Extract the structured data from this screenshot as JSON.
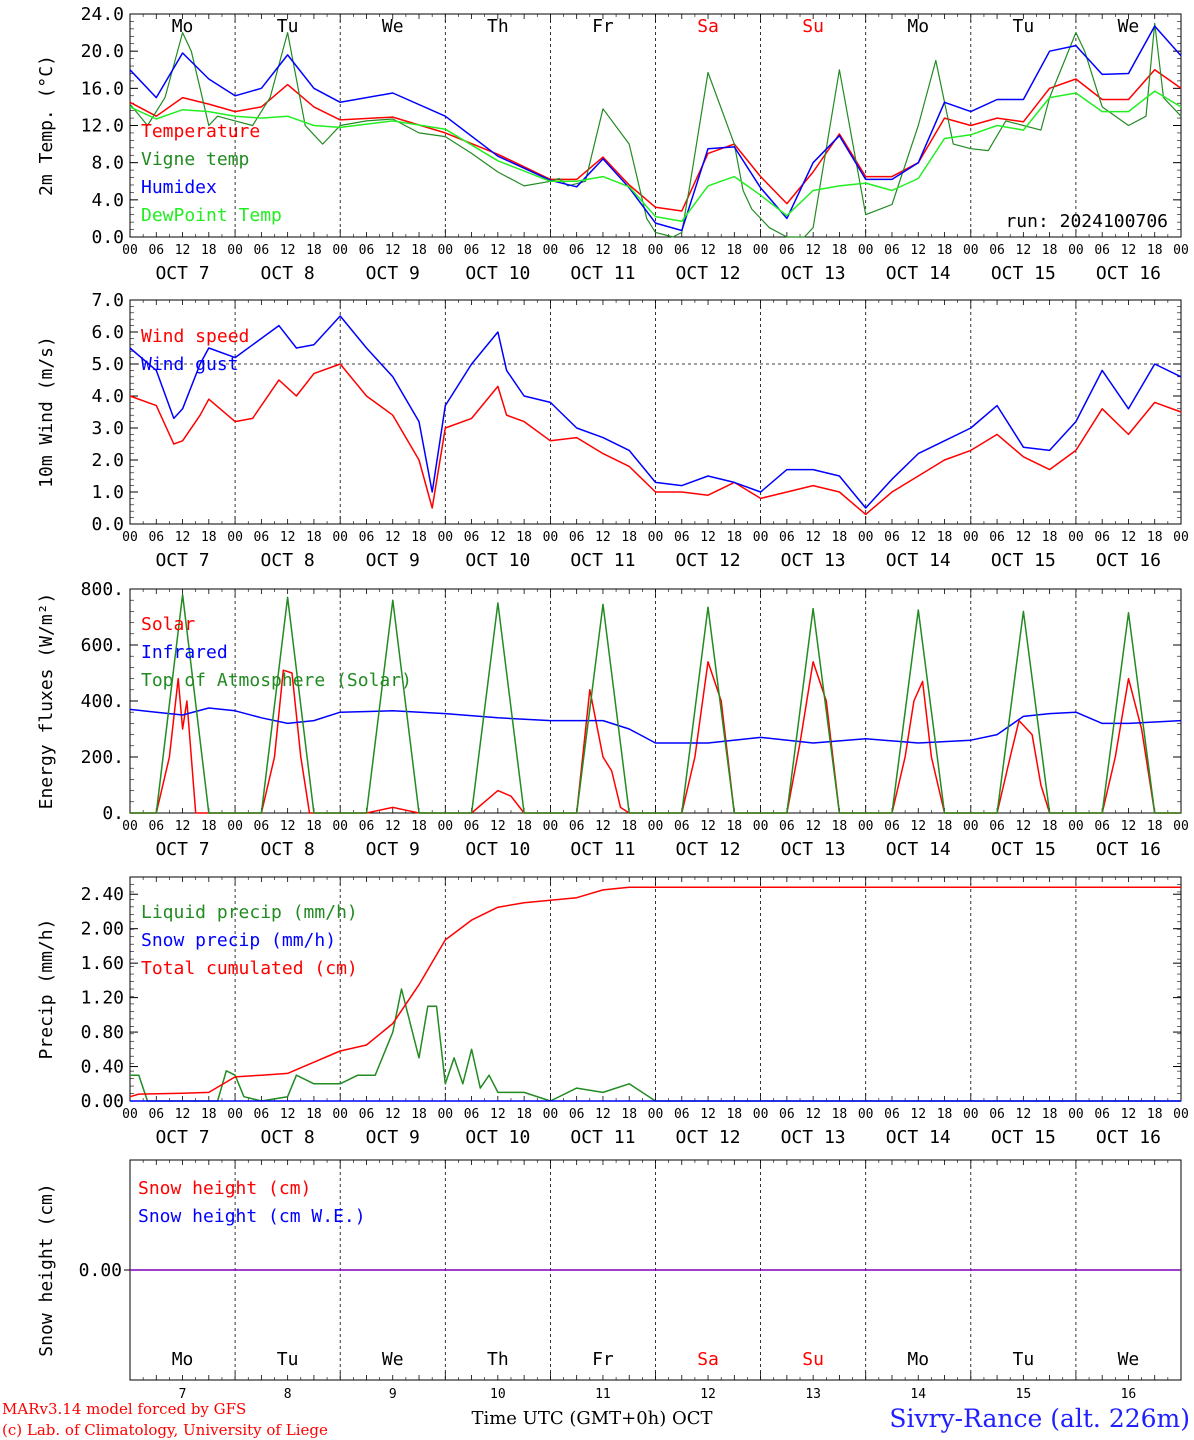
{
  "days": [
    "Mo",
    "Tu",
    "We",
    "Th",
    "Fr",
    "Sa",
    "Su",
    "Mo",
    "Tu",
    "We"
  ],
  "weekend_color": "#ff0000",
  "dates": [
    "OCT  7",
    "OCT  8",
    "OCT  9",
    "OCT 10",
    "OCT 11",
    "OCT 12",
    "OCT 13",
    "OCT 14",
    "OCT 15",
    "OCT 16"
  ],
  "day_numbers": [
    "7",
    "8",
    "9",
    "10",
    "11",
    "12",
    "13",
    "14",
    "15",
    "16"
  ],
  "hour_labels": [
    "00",
    "06",
    "12",
    "18"
  ],
  "hour_end_label": "00",
  "footer": {
    "model": "MARv3.14 model forced by GFS",
    "lab": "(c) Lab. of Climatology, University of Liege",
    "time_axis": "Time UTC (GMT+0h) OCT",
    "station": "Sivry-Rance (alt. 226m)"
  },
  "colors": {
    "red": "#ff0000",
    "green": "#228b22",
    "blue": "#0000ff",
    "lightgreen": "#22ee22",
    "purple": "#7f00bf",
    "station": "#2020ff"
  },
  "chart_data": [
    {
      "type": "line",
      "ylabel": "2m Temp. (°C)",
      "ylim": [
        0,
        24
      ],
      "yticks": [
        "0.0",
        "4.0",
        "8.0",
        "12.0",
        "16.0",
        "20.0",
        "24.0"
      ],
      "run_label": "run: 2024100706",
      "x_unit": "hours since 2024-10-07 00 UTC",
      "series": [
        {
          "name": "Temperature",
          "color": "red",
          "x": [
            0,
            6,
            12,
            18,
            24,
            30,
            36,
            42,
            48,
            60,
            72,
            84,
            96,
            102,
            108,
            114,
            120,
            126,
            132,
            138,
            144,
            150,
            156,
            162,
            168,
            174,
            180,
            186,
            192,
            198,
            204,
            210,
            216,
            222,
            228,
            234,
            240
          ],
          "y": [
            14.5,
            13,
            15,
            14.3,
            13.5,
            14,
            16.4,
            14,
            12.6,
            12.9,
            11.2,
            8.9,
            6.2,
            6.2,
            8.6,
            5.6,
            3.2,
            2.8,
            9,
            10,
            6.5,
            3.6,
            7,
            11.1,
            6.5,
            6.5,
            8,
            12.8,
            12,
            12.8,
            12.4,
            16,
            17,
            14.8,
            14.8,
            18,
            16
          ]
        },
        {
          "name": "Vigne temp",
          "color": "green",
          "x": [
            0,
            4,
            8,
            12,
            14,
            16,
            18,
            20,
            24,
            28,
            32,
            36,
            40,
            42,
            44,
            48,
            54,
            60,
            66,
            72,
            78,
            84,
            90,
            96,
            98,
            100,
            104,
            108,
            114,
            118,
            120,
            124,
            126,
            128,
            132,
            138,
            140,
            142,
            146,
            150,
            154,
            156,
            162,
            168,
            174,
            180,
            184,
            188,
            192,
            196,
            200,
            204,
            208,
            210,
            216,
            218,
            222,
            228,
            232,
            234,
            236,
            240
          ],
          "y": [
            14.3,
            12,
            15,
            22,
            20,
            16,
            12,
            13,
            12.5,
            12,
            15,
            22,
            12,
            11,
            10,
            12,
            12.5,
            12.7,
            11.2,
            10.8,
            9,
            7,
            5.5,
            6,
            6.3,
            5.5,
            6,
            13.8,
            10,
            2,
            0.5,
            0,
            0.5,
            6,
            17.7,
            10,
            5,
            3,
            1,
            0,
            0,
            1,
            18,
            2.4,
            3.5,
            12,
            19,
            10,
            9.5,
            9.3,
            12.5,
            12,
            11.5,
            15,
            22,
            20,
            14,
            12,
            13,
            23,
            15,
            13
          ]
        },
        {
          "name": "Humidex",
          "color": "blue",
          "x": [
            0,
            6,
            12,
            18,
            24,
            30,
            36,
            42,
            48,
            60,
            72,
            84,
            96,
            102,
            108,
            114,
            120,
            126,
            132,
            138,
            144,
            150,
            156,
            162,
            168,
            174,
            180,
            186,
            192,
            198,
            204,
            210,
            216,
            222,
            228,
            234,
            240
          ],
          "y": [
            18,
            15,
            19.8,
            17,
            15.2,
            16,
            19.6,
            16,
            14.5,
            15.5,
            13,
            8.7,
            6.1,
            5.4,
            8.4,
            5.3,
            1.5,
            0.7,
            9.5,
            9.7,
            5.3,
            2,
            8,
            10.9,
            6.2,
            6.2,
            8,
            14.5,
            13.5,
            14.8,
            14.8,
            20,
            20.6,
            17.5,
            17.6,
            22.7,
            19.5
          ]
        },
        {
          "name": "DewPoint Temp",
          "color": "lightgreen",
          "x": [
            0,
            6,
            12,
            18,
            24,
            30,
            36,
            42,
            48,
            60,
            72,
            84,
            96,
            102,
            108,
            114,
            120,
            126,
            132,
            138,
            144,
            150,
            156,
            162,
            168,
            174,
            180,
            186,
            192,
            198,
            204,
            210,
            216,
            222,
            228,
            234,
            240
          ],
          "y": [
            14,
            12.7,
            13.7,
            13.5,
            13,
            12.8,
            13,
            12,
            11.8,
            12.5,
            11.6,
            8.2,
            6,
            6,
            6.5,
            5.4,
            2.2,
            1.7,
            5.5,
            6.5,
            4.5,
            2.3,
            5,
            5.5,
            5.8,
            5,
            6.3,
            10.6,
            11,
            12,
            11.5,
            15,
            15.5,
            13.5,
            13.5,
            15.7,
            14
          ]
        }
      ]
    },
    {
      "type": "line",
      "ylabel": "10m Wind (m/s)",
      "ylim": [
        0,
        7
      ],
      "yticks": [
        "0.0",
        "1.0",
        "2.0",
        "3.0",
        "4.0",
        "5.0",
        "6.0",
        "7.0"
      ],
      "reference_line": 5,
      "series": [
        {
          "name": "Wind speed",
          "color": "red",
          "x": [
            0,
            6,
            10,
            12,
            16,
            18,
            24,
            28,
            34,
            38,
            42,
            48,
            54,
            60,
            66,
            69,
            72,
            78,
            84,
            86,
            90,
            96,
            102,
            108,
            114,
            120,
            126,
            132,
            138,
            144,
            150,
            156,
            162,
            168,
            174,
            180,
            186,
            192,
            198,
            204,
            210,
            216,
            222,
            228,
            234,
            240
          ],
          "y": [
            4,
            3.7,
            2.5,
            2.6,
            3.4,
            3.9,
            3.2,
            3.3,
            4.5,
            4,
            4.7,
            5,
            4,
            3.4,
            2,
            0.5,
            3,
            3.3,
            4.3,
            3.4,
            3.2,
            2.6,
            2.7,
            2.2,
            1.8,
            1,
            1,
            0.9,
            1.3,
            0.8,
            1,
            1.2,
            1,
            0.3,
            1,
            1.5,
            2,
            2.3,
            2.8,
            2.1,
            1.7,
            2.3,
            3.6,
            2.8,
            3.8,
            3.5
          ]
        },
        {
          "name": "Wind gust",
          "color": "blue",
          "x": [
            0,
            6,
            10,
            12,
            16,
            18,
            24,
            28,
            34,
            38,
            42,
            48,
            54,
            60,
            66,
            69,
            72,
            78,
            84,
            86,
            90,
            96,
            102,
            108,
            114,
            120,
            126,
            132,
            138,
            144,
            150,
            156,
            162,
            168,
            174,
            180,
            186,
            192,
            198,
            204,
            210,
            216,
            222,
            228,
            234,
            240
          ],
          "y": [
            5.5,
            4.8,
            3.3,
            3.6,
            5,
            5.5,
            5.2,
            5.6,
            6.2,
            5.5,
            5.6,
            6.5,
            5.5,
            4.6,
            3.2,
            1,
            3.7,
            5,
            6,
            4.8,
            4,
            3.8,
            3,
            2.7,
            2.3,
            1.3,
            1.2,
            1.5,
            1.3,
            1,
            1.7,
            1.7,
            1.5,
            0.5,
            1.4,
            2.2,
            2.6,
            3,
            3.7,
            2.4,
            2.3,
            3.2,
            4.8,
            3.6,
            5,
            4.6
          ]
        }
      ]
    },
    {
      "type": "line",
      "ylabel": "Energy fluxes (W/m²)",
      "ylim": [
        0,
        800
      ],
      "yticks": [
        "0.",
        "200.",
        "400.",
        "600.",
        "800."
      ],
      "series": [
        {
          "name": "Solar",
          "color": "red",
          "x": [
            0,
            6,
            9,
            11,
            12,
            13,
            15,
            24,
            30,
            33,
            35,
            37,
            39,
            41,
            48,
            54,
            57,
            60,
            63,
            66,
            72,
            78,
            81,
            84,
            87,
            90,
            96,
            102,
            105,
            108,
            110,
            112,
            114,
            120,
            126,
            129,
            132,
            135,
            138,
            144,
            150,
            153,
            156,
            159,
            162,
            168,
            174,
            177,
            179,
            181,
            183,
            186,
            192,
            198,
            201,
            203,
            206,
            208,
            210,
            216,
            222,
            225,
            228,
            231,
            234,
            240
          ],
          "y": [
            0,
            0,
            200,
            480,
            300,
            400,
            0,
            0,
            0,
            200,
            510,
            500,
            200,
            0,
            0,
            0,
            10,
            20,
            10,
            0,
            0,
            0,
            40,
            80,
            60,
            0,
            0,
            0,
            440,
            200,
            150,
            20,
            0,
            0,
            0,
            200,
            540,
            400,
            0,
            0,
            0,
            250,
            540,
            400,
            0,
            0,
            0,
            200,
            400,
            470,
            200,
            0,
            0,
            0,
            200,
            330,
            280,
            100,
            0,
            0,
            0,
            200,
            480,
            300,
            0,
            0
          ]
        },
        {
          "name": "Infrared",
          "color": "blue",
          "x": [
            0,
            6,
            12,
            18,
            24,
            30,
            36,
            42,
            48,
            60,
            72,
            84,
            96,
            108,
            114,
            120,
            132,
            144,
            156,
            168,
            180,
            192,
            198,
            204,
            210,
            216,
            222,
            228,
            240
          ],
          "y": [
            370,
            360,
            350,
            375,
            365,
            340,
            320,
            330,
            360,
            365,
            355,
            340,
            330,
            330,
            300,
            250,
            250,
            270,
            250,
            265,
            250,
            260,
            280,
            345,
            355,
            360,
            320,
            320,
            330
          ]
        },
        {
          "name": "Top of Atmosphere (Solar)",
          "color": "green",
          "x": [
            0,
            6,
            12,
            18,
            24,
            30,
            36,
            42,
            48,
            54,
            60,
            66,
            72,
            78,
            84,
            90,
            96,
            102,
            108,
            114,
            120,
            126,
            132,
            138,
            144,
            150,
            156,
            162,
            168,
            174,
            180,
            186,
            192,
            198,
            204,
            210,
            216,
            222,
            228,
            234,
            240
          ],
          "y": [
            0,
            0,
            780,
            0,
            0,
            0,
            770,
            0,
            0,
            0,
            760,
            0,
            0,
            0,
            750,
            0,
            0,
            0,
            745,
            0,
            0,
            0,
            735,
            0,
            0,
            0,
            730,
            0,
            0,
            0,
            725,
            0,
            0,
            0,
            720,
            0,
            0,
            0,
            715,
            0,
            0
          ]
        }
      ]
    },
    {
      "type": "line",
      "ylabel": "Precip (mm/h)",
      "ylim": [
        0,
        2.6
      ],
      "yticks": [
        "0.00",
        "0.40",
        "0.80",
        "1.20",
        "1.60",
        "2.00",
        "2.40"
      ],
      "series": [
        {
          "name": "Liquid precip (mm/h)",
          "color": "green",
          "x": [
            0,
            2,
            4,
            6,
            12,
            20,
            22,
            24,
            26,
            30,
            36,
            38,
            42,
            48,
            52,
            56,
            60,
            62,
            66,
            68,
            70,
            72,
            74,
            76,
            78,
            80,
            82,
            84,
            90,
            96,
            102,
            108,
            114,
            120,
            132,
            150,
            240
          ],
          "y": [
            0.3,
            0.3,
            0,
            0,
            0,
            0,
            0.35,
            0.3,
            0.05,
            0,
            0.05,
            0.3,
            0.2,
            0.2,
            0.3,
            0.3,
            0.8,
            1.3,
            0.5,
            1.1,
            1.1,
            0.2,
            0.5,
            0.2,
            0.6,
            0.15,
            0.3,
            0.1,
            0.1,
            0,
            0.15,
            0.1,
            0.2,
            0,
            0,
            0,
            0
          ]
        },
        {
          "name": "Snow precip (mm/h)",
          "color": "blue",
          "x": [
            0,
            240
          ],
          "y": [
            0,
            0
          ]
        },
        {
          "name": "Total cumulated (cm)",
          "color": "red",
          "x": [
            0,
            2,
            12,
            18,
            24,
            30,
            36,
            42,
            48,
            54,
            60,
            66,
            72,
            78,
            84,
            90,
            96,
            102,
            108,
            114,
            120,
            240
          ],
          "y": [
            0.05,
            0.08,
            0.09,
            0.1,
            0.28,
            0.3,
            0.32,
            0.45,
            0.58,
            0.65,
            0.9,
            1.35,
            1.87,
            2.1,
            2.25,
            2.3,
            2.33,
            2.36,
            2.45,
            2.48,
            2.48,
            2.48
          ]
        }
      ]
    },
    {
      "type": "line",
      "ylabel": "Snow height (cm)",
      "yticks": [
        "0.00"
      ],
      "series": [
        {
          "name": "Snow height (cm)",
          "color": "red",
          "x": [
            0,
            240
          ],
          "y": [
            0,
            0
          ]
        },
        {
          "name": "Snow height (cm W.E.)",
          "color": "blue",
          "x": [
            0,
            240
          ],
          "y": [
            0,
            0
          ]
        }
      ]
    }
  ]
}
